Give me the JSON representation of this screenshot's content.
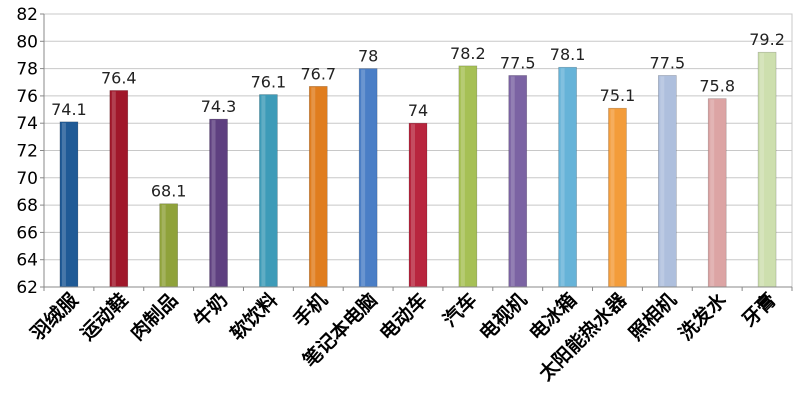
{
  "chart_data": {
    "type": "bar",
    "title": "",
    "xlabel": "",
    "ylabel": "",
    "ylim": [
      62,
      82
    ],
    "yticks": [
      62,
      64,
      66,
      68,
      70,
      72,
      74,
      76,
      78,
      80,
      82
    ],
    "grid": "horizontal",
    "legend": "none",
    "categories": [
      "羽绒服",
      "运动鞋",
      "肉制品",
      "牛奶",
      "软饮料",
      "手机",
      "笔记本电脑",
      "电动车",
      "汽车",
      "电视机",
      "电冰箱",
      "太阳能热水器",
      "照相机",
      "洗发水",
      "牙膏"
    ],
    "values": [
      74.1,
      76.4,
      68.1,
      74.3,
      76.1,
      76.7,
      78,
      74,
      78.2,
      77.5,
      78.1,
      75.1,
      77.5,
      75.8,
      79.2
    ],
    "value_labels": [
      "74.1",
      "76.4",
      "68.1",
      "74.3",
      "76.1",
      "76.7",
      "78",
      "74",
      "78.2",
      "77.5",
      "78.1",
      "75.1",
      "77.5",
      "75.8",
      "79.2"
    ],
    "colors": [
      "#1f5a96",
      "#a0172a",
      "#8fa23a",
      "#5e3f80",
      "#3d9bb8",
      "#e07d1e",
      "#4a7ec6",
      "#b8253e",
      "#a6c055",
      "#7b63a3",
      "#66b3d8",
      "#f39c3a",
      "#aebfdd",
      "#dca4a4",
      "#cddfae"
    ]
  }
}
